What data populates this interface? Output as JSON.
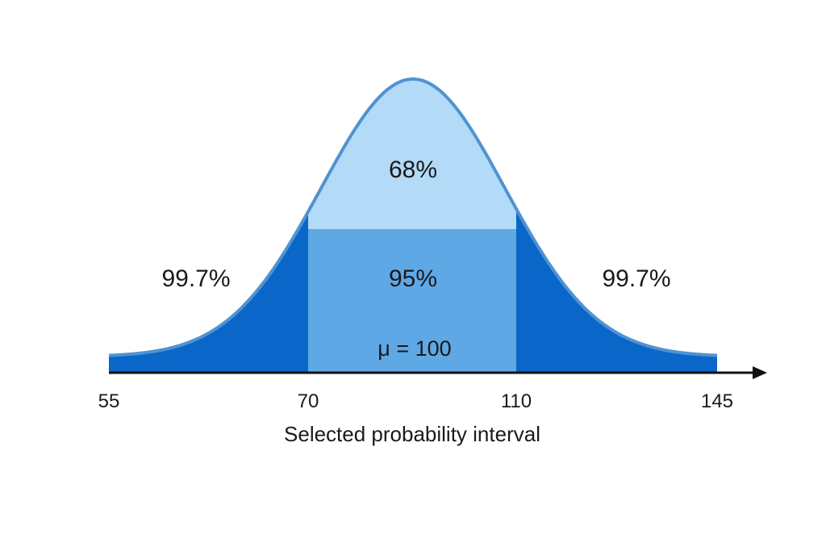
{
  "chart_data": {
    "type": "area",
    "xlabel": "Selected probability interval",
    "ylabel": "",
    "title": "",
    "mean": 100,
    "mean_label": "μ = 100",
    "xlim": [
      55,
      145
    ],
    "ticks": [
      {
        "value": 55,
        "label": "55"
      },
      {
        "value": 70,
        "label": "70"
      },
      {
        "value": 110,
        "label": "110"
      },
      {
        "value": 145,
        "label": "145"
      }
    ],
    "regions": [
      {
        "name": "99.7%",
        "from": 55,
        "to": 70,
        "label": "99.7%"
      },
      {
        "name": "95%",
        "from": 70,
        "to": 110,
        "label": "95%"
      },
      {
        "name": "68%",
        "from": 70,
        "to": 110,
        "label": "68%"
      },
      {
        "name": "99.7%",
        "from": 110,
        "to": 145,
        "label": "99.7%"
      }
    ],
    "colors": {
      "tail": "#0a66c8",
      "middle": "#5fa8e6",
      "center": "#b3daf7",
      "outline": "#4f93d2",
      "axis": "#111111"
    },
    "grid": false
  }
}
